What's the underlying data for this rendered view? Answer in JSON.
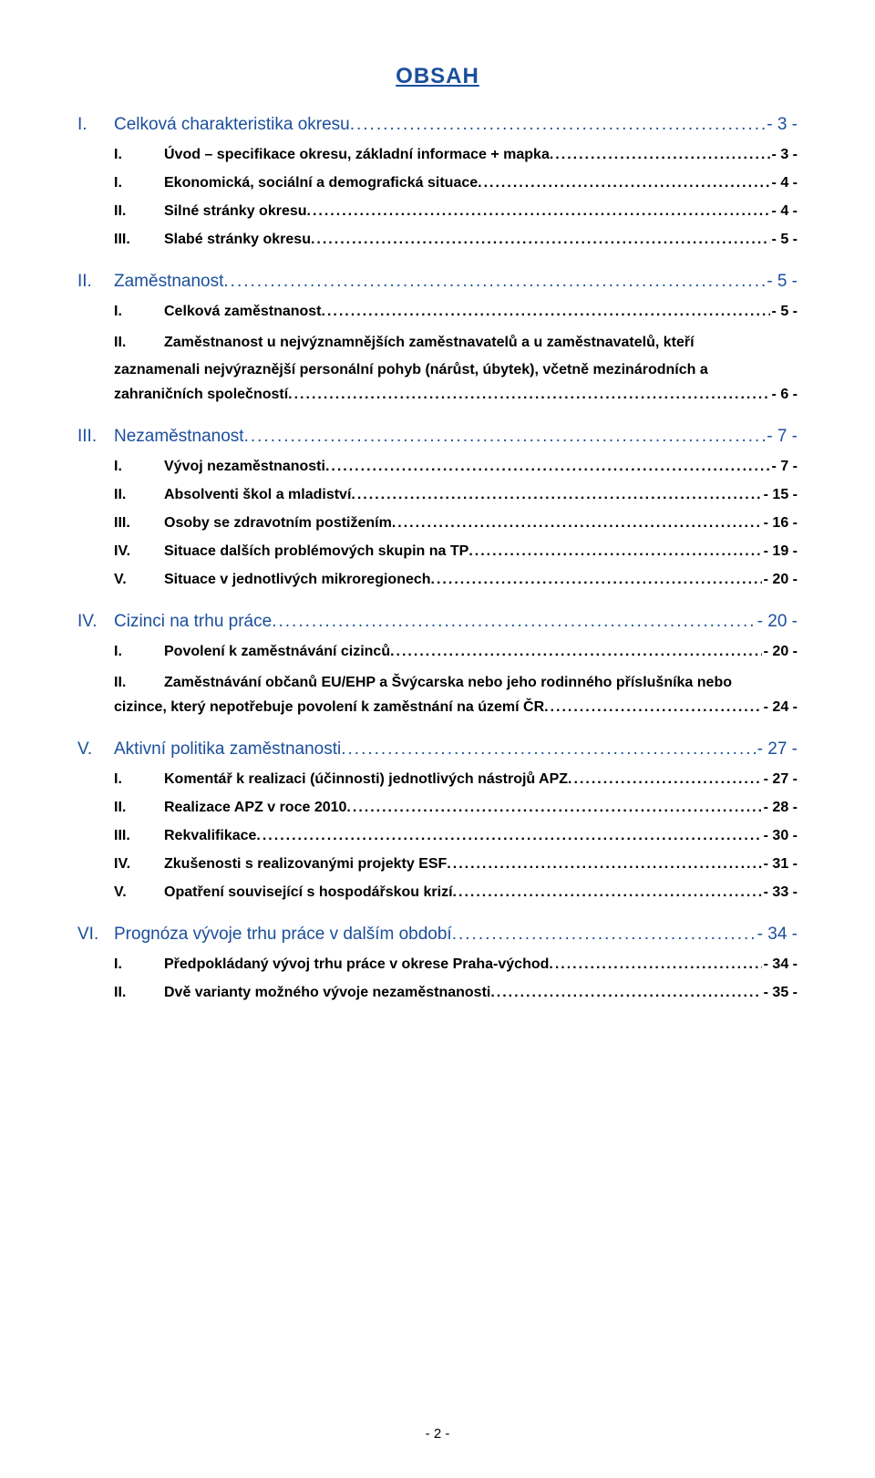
{
  "title": "OBSAH",
  "page_number_bottom": "- 2 -",
  "colors": {
    "heading": "#1b4f9c",
    "text": "#000000",
    "background": "#ffffff"
  },
  "toc": [
    {
      "num": "I.",
      "label": "Celková charakteristika okresu",
      "page": "- 3 -",
      "children": [
        {
          "num": "I.",
          "label": "Úvod – specifikace okresu, základní informace + mapka",
          "page": " - 3 -"
        },
        {
          "num": "I.",
          "label": "Ekonomická, sociální a demografická situace",
          "page": " - 4 -"
        },
        {
          "num": "II.",
          "label": "Silné stránky okresu",
          "page": " - 4 -"
        },
        {
          "num": "III.",
          "label": "Slabé stránky okresu",
          "page": " - 5 -"
        }
      ]
    },
    {
      "num": "II.",
      "label": "Zaměstnanost",
      "page": "- 5 -",
      "children": [
        {
          "num": "I.",
          "label": "Celková zaměstnanost",
          "page": " - 5 -"
        },
        {
          "num": "II.",
          "multiline": [
            "Zaměstnanost u nejvýznamnějších zaměstnavatelů a u zaměstnavatelů, kteří",
            "zaznamenali nejvýraznější personální pohyb (nárůst, úbytek), včetně mezinárodních a"
          ],
          "last_label": "zahraničních společností",
          "page": " - 6 -"
        }
      ]
    },
    {
      "num": "III.",
      "label": "Nezaměstnanost",
      "page": "- 7 -",
      "children": [
        {
          "num": "I.",
          "label": "Vývoj nezaměstnanosti",
          "page": " - 7 -"
        },
        {
          "num": "II.",
          "label": "Absolventi škol a mladiství",
          "page": "- 15 -"
        },
        {
          "num": "III.",
          "label": "Osoby se zdravotním postižením",
          "page": "- 16 -"
        },
        {
          "num": "IV.",
          "label": "Situace dalších problémových skupin na TP",
          "page": "- 19 -"
        },
        {
          "num": "V.",
          "label": "Situace v jednotlivých mikroregionech",
          "page": "- 20 -"
        }
      ]
    },
    {
      "num": "IV.",
      "label": "Cizinci na trhu práce",
      "page": "- 20 -",
      "children": [
        {
          "num": "I.",
          "label": "Povolení k zaměstnávání cizinců",
          "page": "- 20 -"
        },
        {
          "num": "II.",
          "multiline": [
            "Zaměstnávání občanů EU/EHP a Švýcarska nebo jeho rodinného příslušníka nebo"
          ],
          "last_label": "cizince, který nepotřebuje povolení k zaměstnání na území ČR",
          "page": "- 24 -"
        }
      ]
    },
    {
      "num": "V.",
      "label": "Aktivní politika zaměstnanosti",
      "page": "- 27 -",
      "children": [
        {
          "num": "I.",
          "label": "Komentář k realizaci (účinnosti) jednotlivých nástrojů APZ",
          "page": "- 27 -"
        },
        {
          "num": "II.",
          "label": "Realizace APZ v roce 2010",
          "page": "- 28 -"
        },
        {
          "num": "III.",
          "label": "Rekvalifikace",
          "page": "- 30 -"
        },
        {
          "num": "IV.",
          "label": "Zkušenosti s realizovanými projekty ESF",
          "page": "- 31 -"
        },
        {
          "num": "V.",
          "label": "Opatření související s hospodářskou krizí",
          "page": "- 33 -"
        }
      ]
    },
    {
      "num": "VI.",
      "label": "Prognóza vývoje trhu práce v dalším období",
      "page": "- 34 -",
      "children": [
        {
          "num": "I.",
          "label": "Předpokládaný vývoj trhu práce v okrese Praha-východ",
          "page": "- 34 -"
        },
        {
          "num": "II.",
          "label": "Dvě varianty možného vývoje nezaměstnanosti",
          "page": "- 35 -"
        }
      ]
    }
  ]
}
